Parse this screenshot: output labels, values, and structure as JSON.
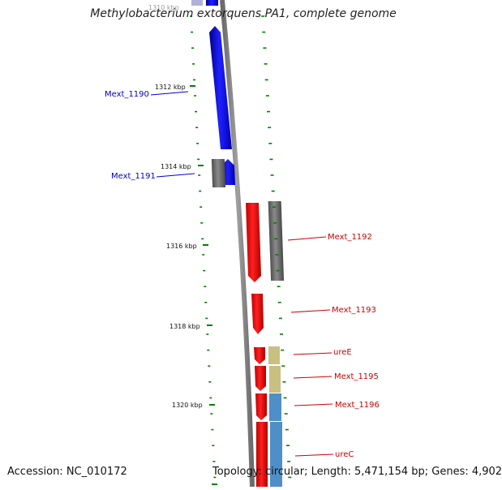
{
  "title": "Methylobacterium extorquens PA1, complete genome",
  "footer": {
    "accession": "Accession: NC_010172",
    "topology": "Topology: circular; Length: 5,471,154 bp; Genes: 4,902"
  },
  "colors": {
    "forward_gene": "#0000ff",
    "reverse_gene": "#ff0000",
    "other_gene": "#808080",
    "feature_tan": "#c8c080",
    "feature_blue": "#4f8fc8",
    "tick": "#008000",
    "label_forward": "#0000cc",
    "label_reverse": "#cc0000",
    "backbone": "#808080"
  },
  "scale": {
    "ticks": [
      "1310 kbp",
      "1312 kbp",
      "1314 kbp",
      "1316 kbp",
      "1318 kbp",
      "1320 kbp"
    ]
  },
  "gene_labels": {
    "forward": [
      "Mext_1190",
      "Mext_1191"
    ],
    "reverse": [
      "Mext_1192",
      "Mext_1193",
      "ureE",
      "Mext_1195",
      "Mext_1196",
      "ureC"
    ]
  }
}
